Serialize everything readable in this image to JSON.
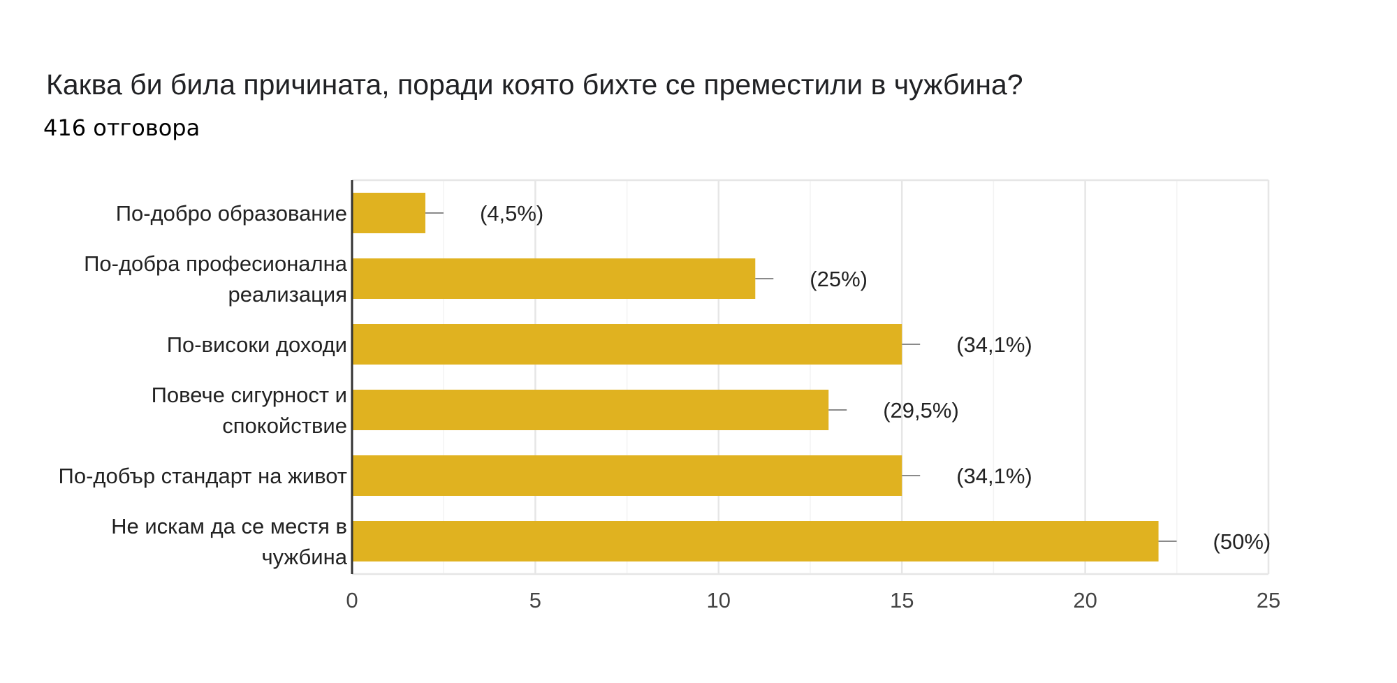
{
  "title": "Каква би била причината, поради която бихте се преместили в чужбина?",
  "subtitle": "416 отговора",
  "chart_data": {
    "type": "bar",
    "orientation": "horizontal",
    "categories": [
      [
        "По-добро образование"
      ],
      [
        "По-добра професионална",
        "реализация"
      ],
      [
        "По-високи доходи"
      ],
      [
        "Повече сигурност и",
        "спокойствие"
      ],
      [
        "По-добър стандарт на живот"
      ],
      [
        "Не искам да се местя в",
        "чужбина"
      ]
    ],
    "values": [
      2,
      11,
      15,
      13,
      15,
      22
    ],
    "data_labels": [
      "(4,5%)",
      "(25%)",
      "(34,1%)",
      "(29,5%)",
      "(34,1%)",
      "(50%)"
    ],
    "xlim": [
      0,
      25
    ],
    "xticks": [
      "0",
      "5",
      "10",
      "15",
      "20",
      "25"
    ],
    "bar_color": "#e0b220",
    "grid": true
  }
}
